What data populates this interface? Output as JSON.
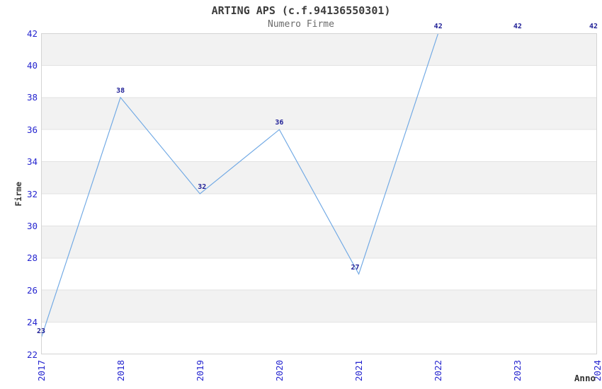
{
  "chart_data": {
    "type": "line",
    "title": "ARTING APS (c.f.94136550301)",
    "subtitle": "Numero Firme",
    "xlabel": "Anno",
    "ylabel": "Firme",
    "categories": [
      "2017",
      "2018",
      "2019",
      "2020",
      "2021",
      "2022",
      "2023",
      "2024"
    ],
    "series": [
      {
        "name": "Numero Firme",
        "values": [
          23,
          38,
          32,
          36,
          27,
          42,
          42,
          42
        ]
      }
    ],
    "point_labels": [
      "23",
      "38",
      "32",
      "36",
      "27",
      "42",
      "42",
      "42"
    ],
    "ylim": [
      22,
      42
    ],
    "yticks": [
      22,
      24,
      26,
      28,
      30,
      32,
      34,
      36,
      38,
      40,
      42
    ],
    "legend_position": "none",
    "grid": "alternating horizontal gray bands every 2 units with thin gridlines",
    "colors": {
      "line": "#6FA8E4",
      "tick_label": "#2525CF",
      "point_label": "#1E1E96",
      "band": "#F2F2F2",
      "gridline": "#E2E2E2",
      "plot_border": "#D4D4D4",
      "title": "#3C3C3C",
      "subtitle": "#6B6B6B",
      "axis_title": "#333333",
      "background": "#FFFFFF"
    }
  }
}
